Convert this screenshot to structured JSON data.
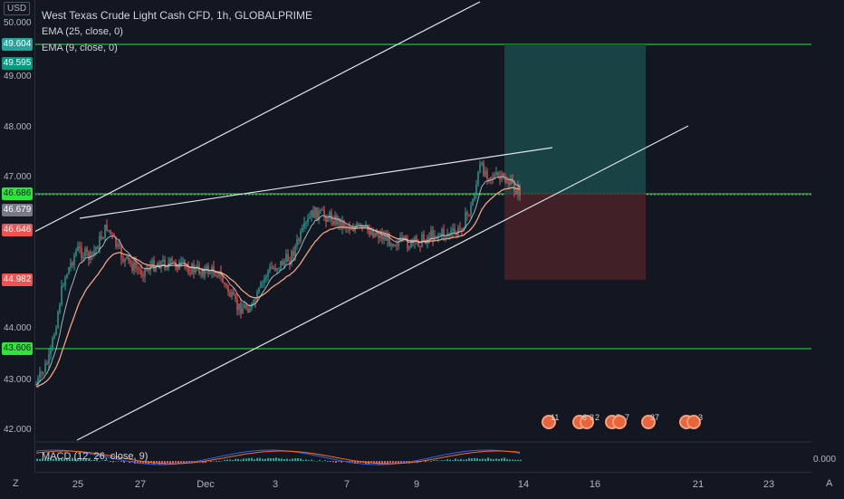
{
  "header": {
    "currency": "USD",
    "title": "West Texas Crude Light Cash CFD, 1h, GLOBALPRIME",
    "indicators": [
      "EMA (25, close, 0)",
      "EMA (9, close, 0)"
    ]
  },
  "macd": {
    "label": "MACD (12, 26, close, 9)",
    "value": "0.000"
  },
  "price_axis": {
    "ticks": [
      "49.000",
      "48.000",
      "47.000",
      "44.000",
      "43.000",
      "42.000"
    ],
    "top_partial": "50.000"
  },
  "price_tags": [
    {
      "text": "49.604",
      "bg": "#26a69a",
      "fg": "#ffffff"
    },
    {
      "text": "49.595",
      "bg": "#089981",
      "fg": "#ffffff"
    },
    {
      "text": "46.686",
      "bg": "#2ee53d",
      "fg": "#131722"
    },
    {
      "text": "46.679",
      "bg": "#787b86",
      "fg": "#ffffff"
    },
    {
      "text": "46.646",
      "bg": "#ef5350",
      "fg": "#ffffff"
    },
    {
      "text": "44.982",
      "bg": "#ef5350",
      "fg": "#ffffff"
    },
    {
      "text": "43.606",
      "bg": "#2ee53d",
      "fg": "#131722"
    }
  ],
  "time_axis": [
    "25",
    "27",
    "Dec",
    "3",
    "7",
    "9",
    "14",
    "16",
    "21",
    "23"
  ],
  "events": [
    "11",
    "6",
    "3",
    "2",
    "5",
    "7",
    "37",
    "3"
  ],
  "corner": {
    "zoom": "Z",
    "auto": "A"
  },
  "colors": {
    "background": "#131722",
    "up": "#26a69a",
    "down": "#ef5350",
    "ema_fast": "#f5a17e",
    "ema_slow": "#d1d4dc",
    "level": "#2ee53d",
    "target_zone": "#1b4a4a",
    "stop_zone": "#4a2228"
  }
}
